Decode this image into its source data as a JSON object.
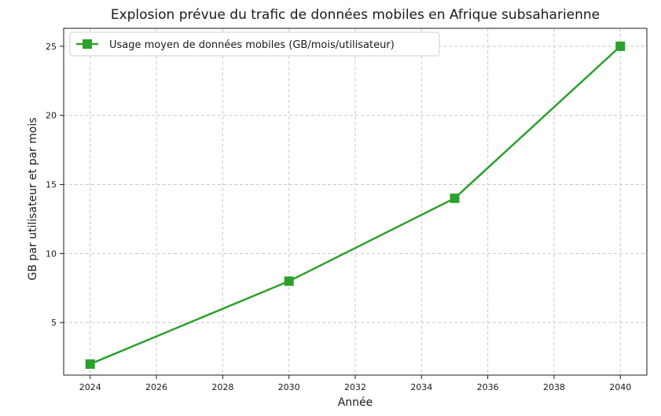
{
  "chart_data": {
    "type": "line",
    "title": "Explosion prévue du trafic de données mobiles en Afrique subsaharienne",
    "xlabel": "Année",
    "ylabel": "GB par utilisateur et par mois",
    "xlim": [
      2023.2,
      2040.8
    ],
    "ylim": [
      1.2,
      26.3
    ],
    "xticks": [
      2024,
      2026,
      2028,
      2030,
      2032,
      2034,
      2036,
      2038,
      2040
    ],
    "yticks": [
      5,
      10,
      15,
      20,
      25
    ],
    "grid": true,
    "legend_position": "top-left",
    "series": [
      {
        "name": "Usage moyen de données mobiles (GB/mois/utilisateur)",
        "color": "#2ca02c",
        "marker": "square",
        "x": [
          2024,
          2030,
          2035,
          2040
        ],
        "y": [
          2,
          8,
          14,
          25
        ]
      }
    ]
  }
}
